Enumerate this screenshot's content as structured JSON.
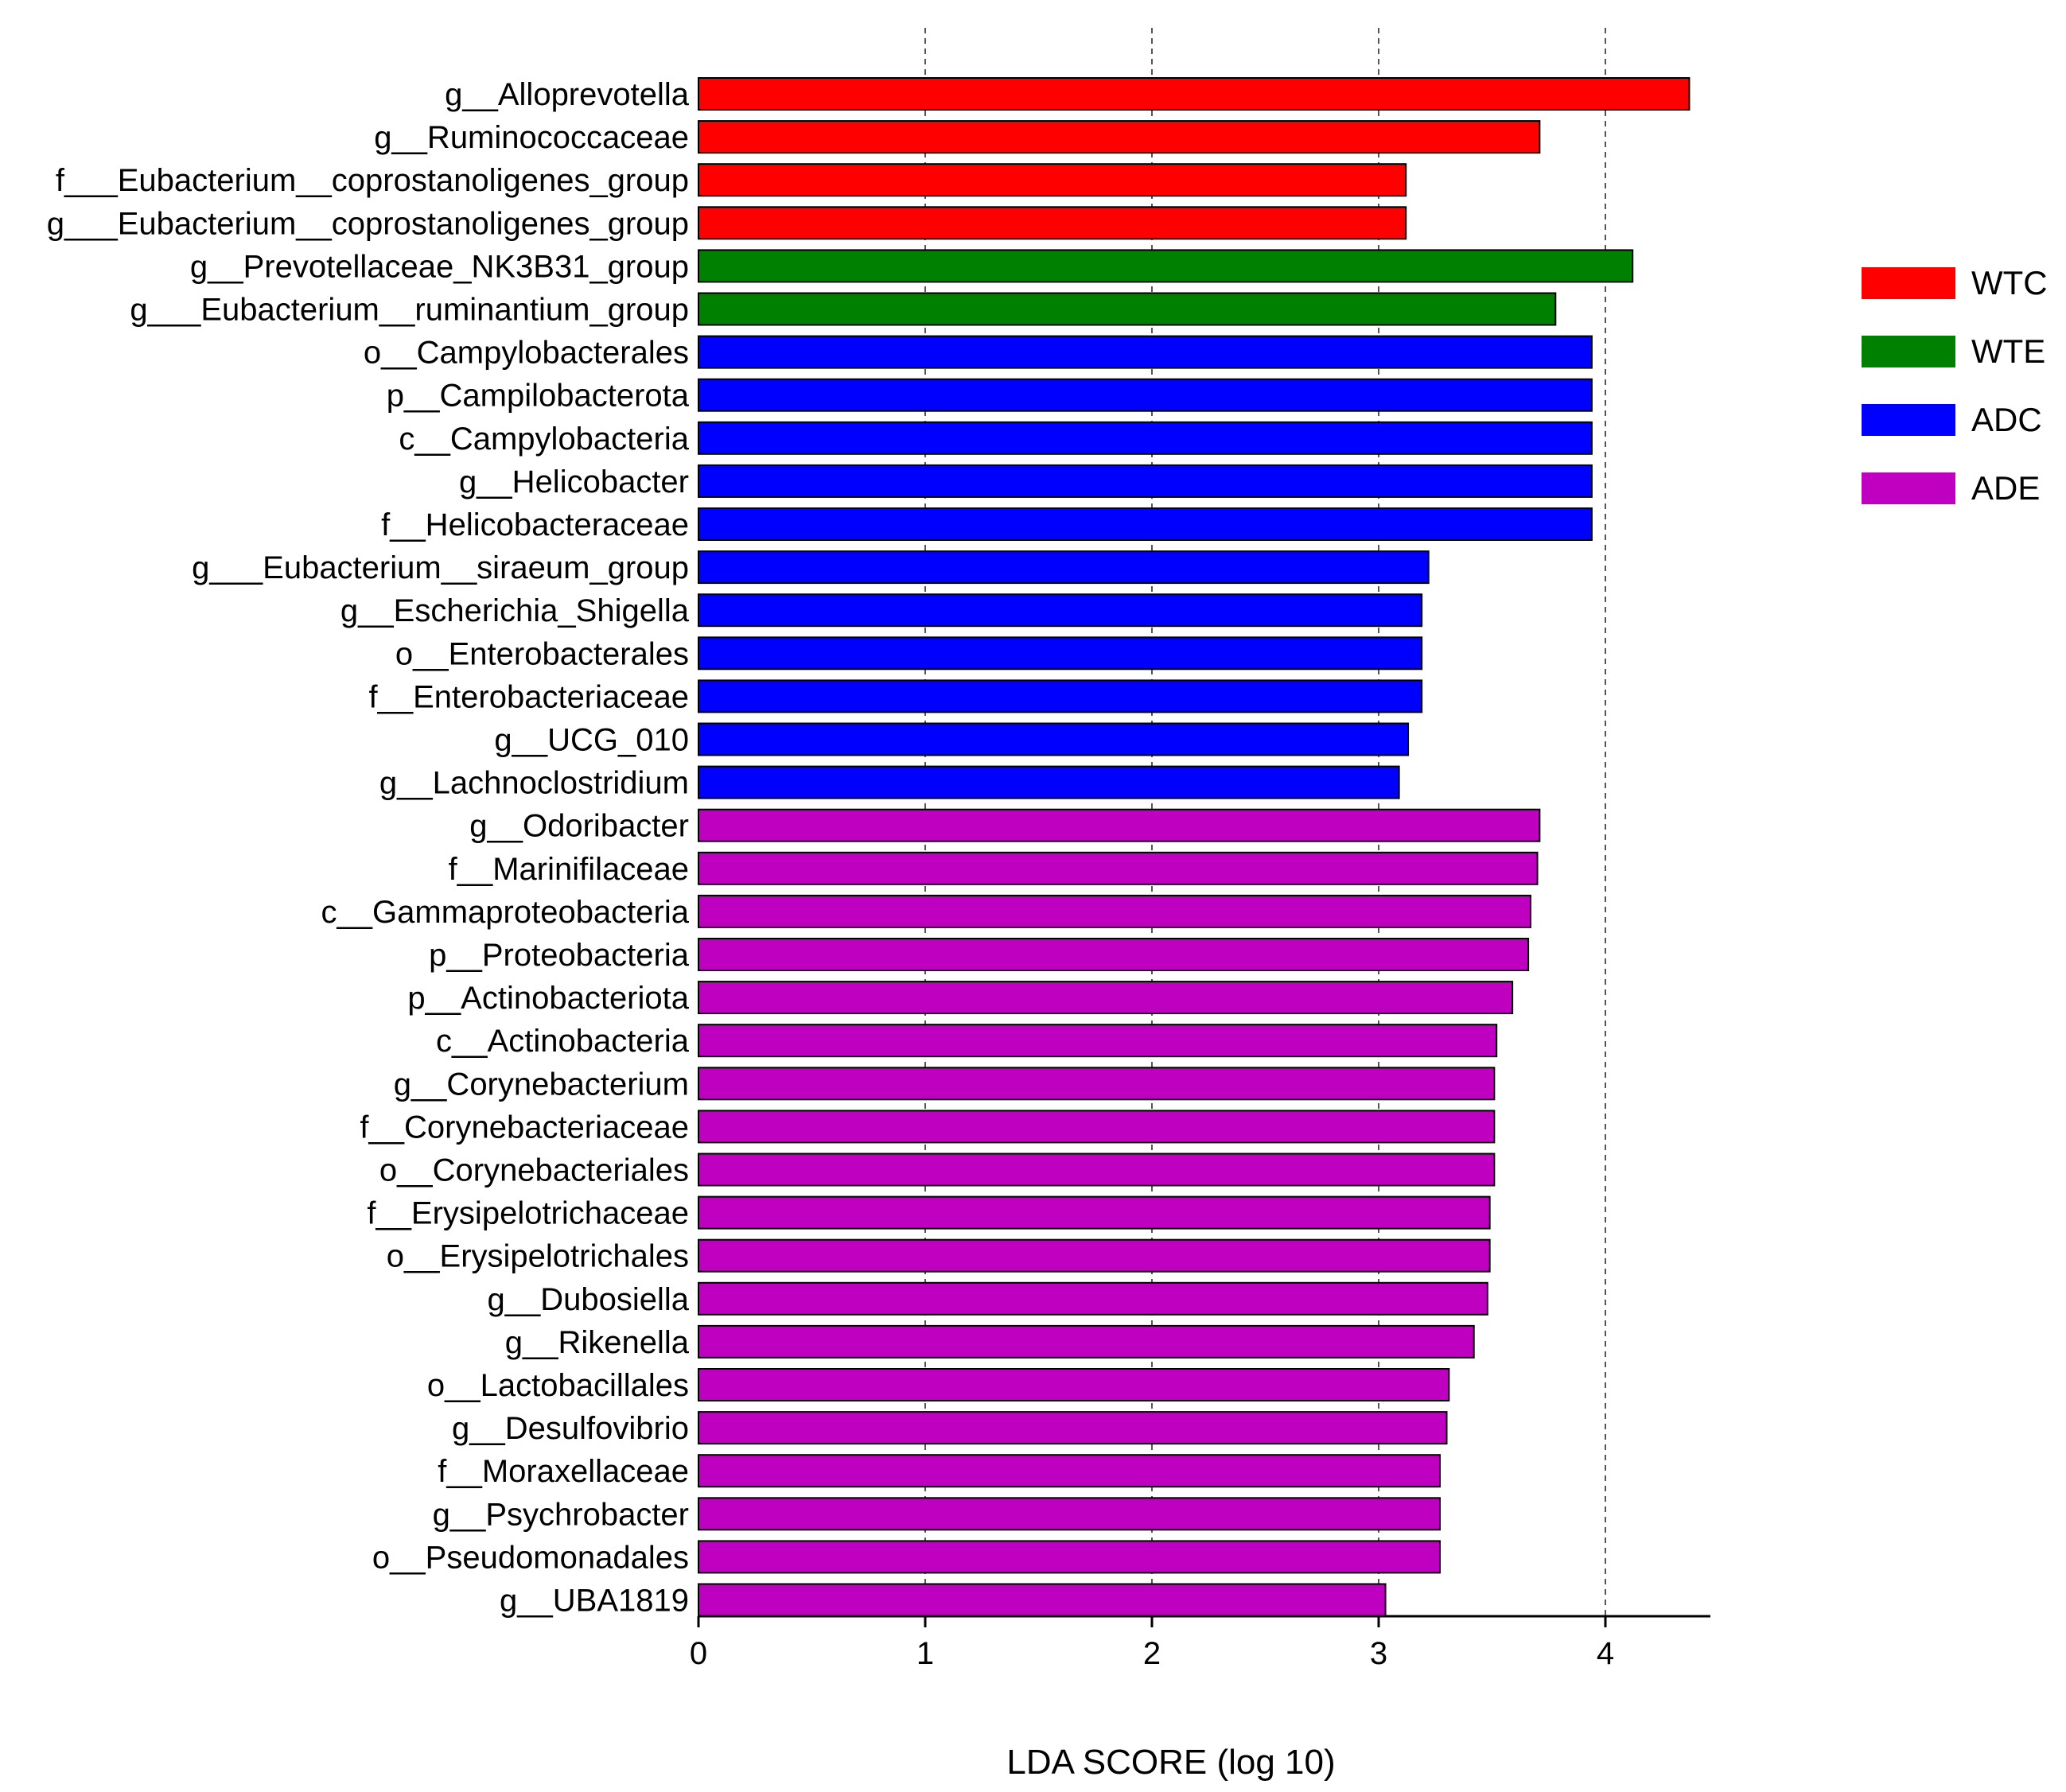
{
  "chart_data": {
    "type": "bar",
    "orientation": "horizontal",
    "xlabel": "LDA SCORE (log 10)",
    "xlim": [
      0,
      4.45
    ],
    "xticks": [
      0,
      1,
      2,
      3,
      4
    ],
    "grid": "vertical dashed at ticks 1-4",
    "legend_position": "right",
    "legend": [
      {
        "name": "WTC",
        "color": "#ff0000"
      },
      {
        "name": "WTE",
        "color": "#008000"
      },
      {
        "name": "ADC",
        "color": "#0000ff"
      },
      {
        "name": "ADE",
        "color": "#c000c0"
      }
    ],
    "bars": [
      {
        "label": "g__Alloprevotella",
        "value": 4.37,
        "group": "WTC"
      },
      {
        "label": "g__Ruminococcaceae",
        "value": 3.71,
        "group": "WTC"
      },
      {
        "label": "f___Eubacterium__coprostanoligenes_group",
        "value": 3.12,
        "group": "WTC"
      },
      {
        "label": "g___Eubacterium__coprostanoligenes_group",
        "value": 3.12,
        "group": "WTC"
      },
      {
        "label": "g__Prevotellaceae_NK3B31_group",
        "value": 4.12,
        "group": "WTE"
      },
      {
        "label": "g___Eubacterium__ruminantium_group",
        "value": 3.78,
        "group": "WTE"
      },
      {
        "label": "o__Campylobacterales",
        "value": 3.94,
        "group": "ADC"
      },
      {
        "label": "p__Campilobacterota",
        "value": 3.94,
        "group": "ADC"
      },
      {
        "label": "c__Campylobacteria",
        "value": 3.94,
        "group": "ADC"
      },
      {
        "label": "g__Helicobacter",
        "value": 3.94,
        "group": "ADC"
      },
      {
        "label": "f__Helicobacteraceae",
        "value": 3.94,
        "group": "ADC"
      },
      {
        "label": "g___Eubacterium__siraeum_group",
        "value": 3.22,
        "group": "ADC"
      },
      {
        "label": "g__Escherichia_Shigella",
        "value": 3.19,
        "group": "ADC"
      },
      {
        "label": "o__Enterobacterales",
        "value": 3.19,
        "group": "ADC"
      },
      {
        "label": "f__Enterobacteriaceae",
        "value": 3.19,
        "group": "ADC"
      },
      {
        "label": "g__UCG_010",
        "value": 3.13,
        "group": "ADC"
      },
      {
        "label": "g__Lachnoclostridium",
        "value": 3.09,
        "group": "ADC"
      },
      {
        "label": "g__Odoribacter",
        "value": 3.71,
        "group": "ADE"
      },
      {
        "label": "f__Marinifilaceae",
        "value": 3.7,
        "group": "ADE"
      },
      {
        "label": "c__Gammaproteobacteria",
        "value": 3.67,
        "group": "ADE"
      },
      {
        "label": "p__Proteobacteria",
        "value": 3.66,
        "group": "ADE"
      },
      {
        "label": "p__Actinobacteriota",
        "value": 3.59,
        "group": "ADE"
      },
      {
        "label": "c__Actinobacteria",
        "value": 3.52,
        "group": "ADE"
      },
      {
        "label": "g__Corynebacterium",
        "value": 3.51,
        "group": "ADE"
      },
      {
        "label": "f__Corynebacteriaceae",
        "value": 3.51,
        "group": "ADE"
      },
      {
        "label": "o__Corynebacteriales",
        "value": 3.51,
        "group": "ADE"
      },
      {
        "label": "f__Erysipelotrichaceae",
        "value": 3.49,
        "group": "ADE"
      },
      {
        "label": "o__Erysipelotrichales",
        "value": 3.49,
        "group": "ADE"
      },
      {
        "label": "g__Dubosiella",
        "value": 3.48,
        "group": "ADE"
      },
      {
        "label": "g__Rikenella",
        "value": 3.42,
        "group": "ADE"
      },
      {
        "label": "o__Lactobacillales",
        "value": 3.31,
        "group": "ADE"
      },
      {
        "label": "g__Desulfovibrio",
        "value": 3.3,
        "group": "ADE"
      },
      {
        "label": "f__Moraxellaceae",
        "value": 3.27,
        "group": "ADE"
      },
      {
        "label": "g__Psychrobacter",
        "value": 3.27,
        "group": "ADE"
      },
      {
        "label": "o__Pseudomonadales",
        "value": 3.27,
        "group": "ADE"
      },
      {
        "label": "g__UBA1819",
        "value": 3.03,
        "group": "ADE"
      }
    ]
  }
}
